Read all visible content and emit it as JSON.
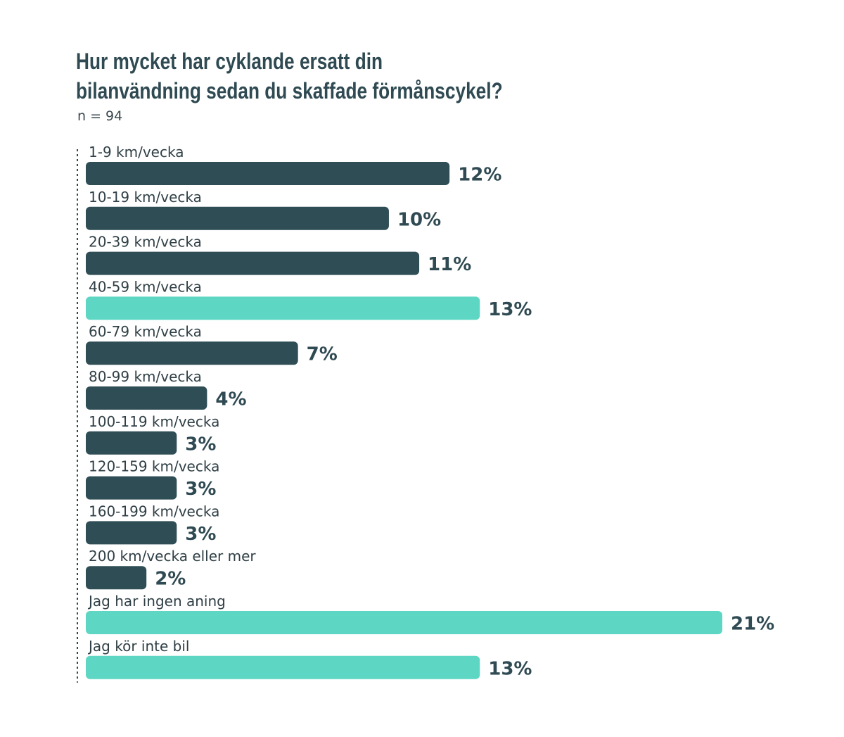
{
  "title_line1": "Hur mycket har cyklande ersatt din",
  "title_line2": "bilanvändning sedan du skaffade förmånscykel?",
  "subtitle": "n = 94",
  "colors": {
    "dark": "#2f4d55",
    "accent": "#5dd6c3",
    "axis": "#2f4a52"
  },
  "chart_data": {
    "type": "bar",
    "orientation": "horizontal",
    "title": "Hur mycket har cyklande ersatt din bilanvändning sedan du skaffade förmånscykel?",
    "subtitle": "n = 94",
    "categories": [
      "1-9 km/vecka",
      "10-19 km/vecka",
      "20-39 km/vecka",
      "40-59 km/vecka",
      "60-79 km/vecka",
      "80-99 km/vecka",
      "100-119 km/vecka",
      "120-159 km/vecka",
      "160-199 km/vecka",
      "200 km/vecka eller mer",
      "Jag har ingen aning",
      "Jag kör inte bil"
    ],
    "values": [
      12,
      10,
      11,
      13,
      7,
      4,
      3,
      3,
      3,
      2,
      21,
      13
    ],
    "value_labels": [
      "12%",
      "10%",
      "11%",
      "13%",
      "7%",
      "4%",
      "3%",
      "3%",
      "3%",
      "2%",
      "21%",
      "13%"
    ],
    "highlighted": [
      false,
      false,
      false,
      true,
      false,
      false,
      false,
      false,
      false,
      false,
      true,
      true
    ],
    "xlim": [
      0,
      21
    ],
    "grid": false,
    "legend": "none"
  }
}
